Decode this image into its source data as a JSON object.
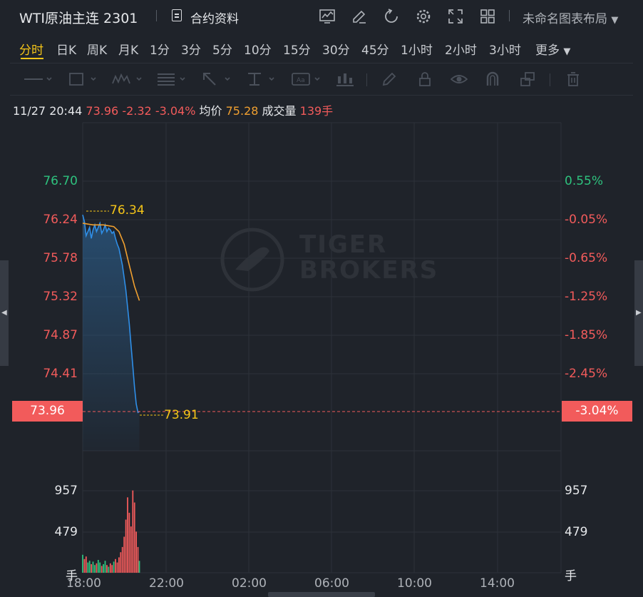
{
  "header": {
    "symbol": "WTI原油主连 2301",
    "contract_info": "合约资料",
    "layout_name": "未命名图表布局"
  },
  "tabs": [
    {
      "label": "分时",
      "active": true
    },
    {
      "label": "日K"
    },
    {
      "label": "周K"
    },
    {
      "label": "月K"
    },
    {
      "label": "1分"
    },
    {
      "label": "3分"
    },
    {
      "label": "5分"
    },
    {
      "label": "10分"
    },
    {
      "label": "15分"
    },
    {
      "label": "30分"
    },
    {
      "label": "45分"
    },
    {
      "label": "1小时"
    },
    {
      "label": "2小时"
    },
    {
      "label": "3小时"
    },
    {
      "label": "更多"
    }
  ],
  "info": {
    "datetime": "11/27 20:44",
    "price": "73.96",
    "change": "-2.32",
    "change_pct": "-3.04%",
    "avg_label": "均价",
    "avg_value": "75.28",
    "vol_label": "成交量",
    "vol_value": "139手"
  },
  "colors": {
    "up": "#2ec27e",
    "down": "#f25b5b",
    "avg": "#f0a030",
    "price_line": "#2f8fe8",
    "highlight": "#f5c518"
  },
  "chart_data": {
    "type": "line",
    "price_axis": [
      "76.70",
      "76.24",
      "75.78",
      "75.32",
      "74.87",
      "74.41",
      "73.96"
    ],
    "pct_axis": [
      "0.55%",
      "-0.05%",
      "-0.65%",
      "-1.25%",
      "-1.85%",
      "-2.45%",
      "-3.04%"
    ],
    "volume_axis": [
      "957",
      "479",
      "手"
    ],
    "x_ticks": [
      "18:00",
      "22:00",
      "02:00",
      "06:00",
      "10:00",
      "14:00"
    ],
    "high_label": "76.34",
    "low_label": "73.91",
    "current_price": "73.96",
    "current_pct": "-3.04%",
    "ylim": [
      73.5,
      77.0
    ],
    "series": [
      {
        "x": [
          "18:00",
          "18:05",
          "18:10",
          "18:15",
          "18:20",
          "18:25",
          "18:30",
          "18:35",
          "18:40",
          "18:45",
          "18:50",
          "18:55",
          "19:00",
          "19:05",
          "19:10",
          "19:15",
          "19:20",
          "19:25",
          "19:30",
          "19:35",
          "19:40",
          "19:45",
          "19:50",
          "19:55",
          "20:00",
          "20:05",
          "20:10",
          "20:15",
          "20:20",
          "20:25",
          "20:30",
          "20:35",
          "20:40",
          "20:44"
        ],
        "values": [
          76.3,
          76.22,
          76.05,
          76.1,
          76.15,
          76.02,
          76.12,
          76.18,
          76.1,
          76.15,
          76.2,
          76.08,
          76.12,
          76.18,
          76.1,
          76.14,
          76.12,
          76.08,
          76.1,
          76.02,
          75.95,
          75.9,
          75.8,
          75.7,
          75.55,
          75.4,
          75.2,
          75.0,
          74.75,
          74.5,
          74.25,
          74.05,
          73.95,
          73.96
        ]
      },
      {
        "x": [
          "18:00",
          "18:30",
          "19:00",
          "19:30",
          "19:45",
          "20:00",
          "20:15",
          "20:30",
          "20:44"
        ],
        "values": [
          76.2,
          76.18,
          76.18,
          76.16,
          76.1,
          75.95,
          75.7,
          75.45,
          75.28
        ]
      }
    ],
    "volume": [
      210,
      160,
      190,
      120,
      140,
      100,
      130,
      90,
      110,
      150,
      120,
      80,
      100,
      140,
      90,
      70,
      110,
      90,
      130,
      160,
      120,
      180,
      240,
      300,
      420,
      620,
      880,
      700,
      540,
      960,
      820,
      480,
      300,
      139
    ]
  }
}
